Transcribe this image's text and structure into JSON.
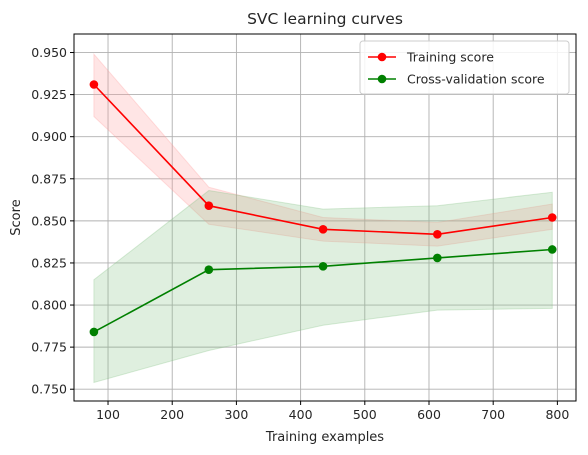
{
  "chart_data": {
    "type": "line",
    "title": "SVC learning curves",
    "xlabel": "Training examples",
    "ylabel": "Score",
    "xlim": [
      47,
      829
    ],
    "ylim": [
      0.743,
      0.961
    ],
    "xticks": [
      100,
      200,
      300,
      400,
      500,
      600,
      700,
      800
    ],
    "xtick_labels": [
      "100",
      "200",
      "300",
      "400",
      "500",
      "600",
      "700",
      "800"
    ],
    "yticks": [
      0.75,
      0.775,
      0.8,
      0.825,
      0.85,
      0.875,
      0.9,
      0.925,
      0.95
    ],
    "ytick_labels": [
      "0.750",
      "0.775",
      "0.800",
      "0.825",
      "0.850",
      "0.875",
      "0.900",
      "0.925",
      "0.950"
    ],
    "grid": true,
    "legend_position": "top-right",
    "x": [
      78,
      257,
      435,
      613,
      792
    ],
    "series": [
      {
        "name": "Training score",
        "color": "#ff0000",
        "band_color": "#ff9999",
        "values": [
          0.931,
          0.859,
          0.845,
          0.842,
          0.852
        ],
        "band_upper": [
          0.949,
          0.87,
          0.852,
          0.849,
          0.86
        ],
        "band_lower": [
          0.912,
          0.848,
          0.838,
          0.835,
          0.845
        ]
      },
      {
        "name": "Cross-validation score",
        "color": "#008000",
        "band_color": "#80c080",
        "values": [
          0.784,
          0.821,
          0.823,
          0.828,
          0.833
        ],
        "band_upper": [
          0.815,
          0.868,
          0.857,
          0.859,
          0.867
        ],
        "band_lower": [
          0.754,
          0.773,
          0.788,
          0.797,
          0.798
        ]
      }
    ]
  }
}
